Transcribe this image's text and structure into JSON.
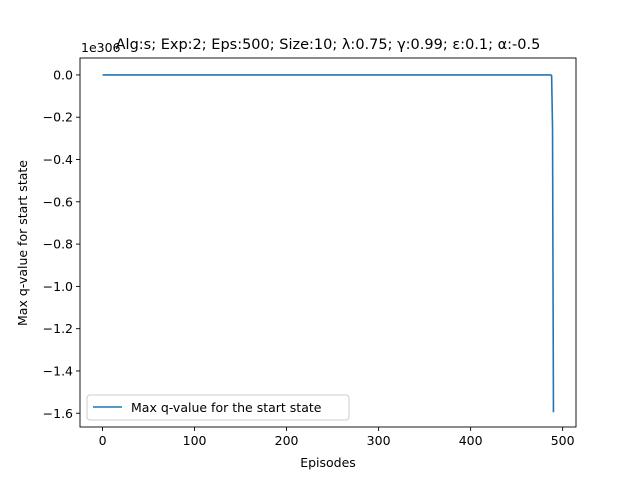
{
  "chart_data": {
    "type": "line",
    "title": "Alg:s; Exp:2; Eps:500; Size:10; λ:0.75; γ:0.99; ε:0.1; α:-0.5",
    "xlabel": "Episodes",
    "ylabel": "Max q-value for start state",
    "offset_text": "1e306",
    "xlim": [
      -24.5,
      514.5
    ],
    "ylim": [
      -1.665,
      0.08
    ],
    "xticks": [
      0,
      100,
      200,
      300,
      400,
      500
    ],
    "yticks": [
      0.0,
      -0.2,
      -0.4,
      -0.6,
      -0.8,
      -1.0,
      -1.2,
      -1.4,
      -1.6
    ],
    "ytick_labels": [
      "0.0",
      "−0.2",
      "−0.4",
      "−0.6",
      "−0.8",
      "−1.0",
      "−1.2",
      "−1.4",
      "−1.6"
    ],
    "grid": false,
    "legend_position": "lower left",
    "series": [
      {
        "name": "Max q-value for the start state",
        "color": "#1f77b4",
        "x": [
          0,
          100,
          200,
          300,
          400,
          486,
          487,
          488,
          489,
          490
        ],
        "y": [
          0,
          0,
          0,
          0,
          0,
          0,
          0,
          -0.003,
          -0.25,
          -1.595
        ]
      }
    ]
  }
}
